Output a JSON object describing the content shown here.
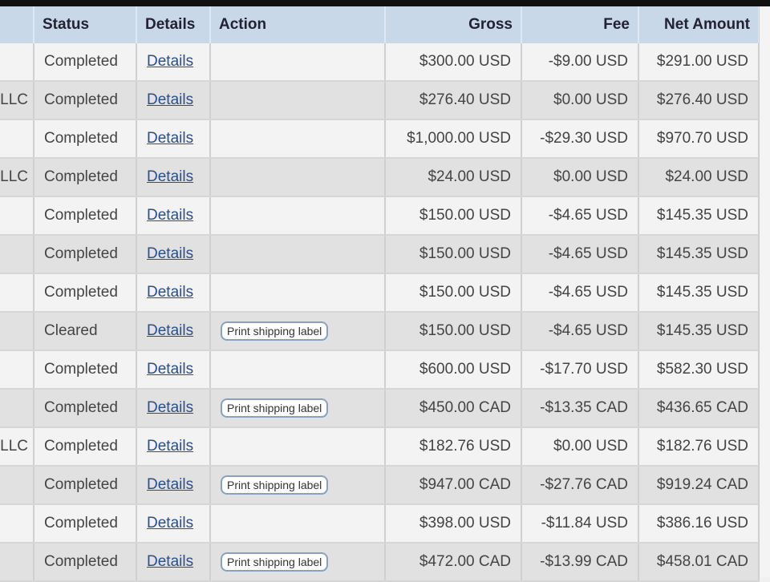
{
  "header": {
    "status": "Status",
    "details": "Details",
    "action": "Action",
    "gross": "Gross",
    "fee": "Fee",
    "net": "Net Amount"
  },
  "rows": [
    {
      "name": "",
      "status": "Completed",
      "details": "Details",
      "action": "",
      "gross": "$300.00 USD",
      "fee": "-$9.00 USD",
      "net": "$291.00 USD"
    },
    {
      "name": "LLC",
      "status": "Completed",
      "details": "Details",
      "action": "",
      "gross": "$276.40 USD",
      "fee": "$0.00 USD",
      "net": "$276.40 USD"
    },
    {
      "name": "",
      "status": "Completed",
      "details": "Details",
      "action": "",
      "gross": "$1,000.00 USD",
      "fee": "-$29.30 USD",
      "net": "$970.70 USD"
    },
    {
      "name": "LLC",
      "status": "Completed",
      "details": "Details",
      "action": "",
      "gross": "$24.00 USD",
      "fee": "$0.00 USD",
      "net": "$24.00 USD"
    },
    {
      "name": "",
      "status": "Completed",
      "details": "Details",
      "action": "",
      "gross": "$150.00 USD",
      "fee": "-$4.65 USD",
      "net": "$145.35 USD"
    },
    {
      "name": "",
      "status": "Completed",
      "details": "Details",
      "action": "",
      "gross": "$150.00 USD",
      "fee": "-$4.65 USD",
      "net": "$145.35 USD"
    },
    {
      "name": "",
      "status": "Completed",
      "details": "Details",
      "action": "",
      "gross": "$150.00 USD",
      "fee": "-$4.65 USD",
      "net": "$145.35 USD"
    },
    {
      "name": "",
      "status": "Cleared",
      "details": "Details",
      "action": "Print shipping label",
      "gross": "$150.00 USD",
      "fee": "-$4.65 USD",
      "net": "$145.35 USD"
    },
    {
      "name": "",
      "status": "Completed",
      "details": "Details",
      "action": "",
      "gross": "$600.00 USD",
      "fee": "-$17.70 USD",
      "net": "$582.30 USD"
    },
    {
      "name": "",
      "status": "Completed",
      "details": "Details",
      "action": "Print shipping label",
      "gross": "$450.00 CAD",
      "fee": "-$13.35 CAD",
      "net": "$436.65 CAD"
    },
    {
      "name": "LLC",
      "status": "Completed",
      "details": "Details",
      "action": "",
      "gross": "$182.76 USD",
      "fee": "$0.00 USD",
      "net": "$182.76 USD"
    },
    {
      "name": "",
      "status": "Completed",
      "details": "Details",
      "action": "Print shipping label",
      "gross": "$947.00 CAD",
      "fee": "-$27.76 CAD",
      "net": "$919.24 CAD"
    },
    {
      "name": "",
      "status": "Completed",
      "details": "Details",
      "action": "",
      "gross": "$398.00 USD",
      "fee": "-$11.84 USD",
      "net": "$386.16 USD"
    },
    {
      "name": "",
      "status": "Completed",
      "details": "Details",
      "action": "Print shipping label",
      "gross": "$472.00 CAD",
      "fee": "-$13.99 CAD",
      "net": "$458.01 CAD"
    }
  ]
}
